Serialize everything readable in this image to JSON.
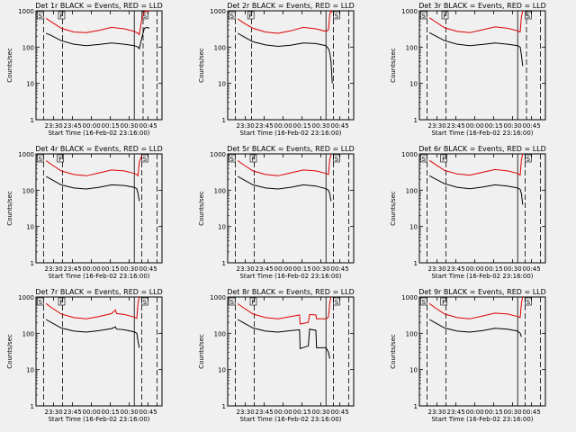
{
  "colors": {
    "background": "#f0f0f0",
    "events": "#000000",
    "lld": "#dd0000",
    "axis": "#000000"
  },
  "chart_data": {
    "type": "line",
    "ylabel": "Counts/sec",
    "xlabel": "Start Time (16-Feb-02 23:16:00)",
    "y_scale": "log",
    "ylim": [
      1,
      1000
    ],
    "y_ticks": [
      {
        "value": 1,
        "label": "1"
      },
      {
        "value": 10,
        "label": "10"
      },
      {
        "value": 100,
        "label": "100"
      },
      {
        "value": 1000,
        "label": "1000"
      }
    ],
    "x_range_minutes": [
      -7.5,
      35
    ],
    "x_ticks": [
      {
        "value": 14,
        "label": "23:30"
      },
      {
        "value": 29,
        "label": "23:45"
      },
      {
        "value": 44,
        "label": "00:00"
      },
      {
        "value": 59,
        "label": "00:15"
      },
      {
        "value": 74,
        "label": "00:30"
      },
      {
        "value": 89,
        "label": "00:45"
      }
    ],
    "x_minute_offset": 0,
    "markers": {
      "S": "S",
      "F": "F"
    },
    "panels": [
      {
        "title": "Det 1r BLACK = Events, RED = LLD",
        "xlim": [
          0,
          100
        ],
        "dashed_lines_x": [
          6,
          21,
          85,
          96
        ],
        "solid_lines_x": [
          78
        ],
        "marker_labels": [
          {
            "text": "S",
            "x": 3
          },
          {
            "text": "F",
            "x": 20
          },
          {
            "text": "S",
            "x": 86
          }
        ],
        "series": [
          {
            "name": "Events",
            "x": [
              8,
              12,
              20,
              30,
              40,
              50,
              60,
              70,
              78,
              81,
              82,
              84,
              86,
              88,
              90
            ],
            "y": [
              240,
              210,
              150,
              120,
              110,
              118,
              130,
              120,
              110,
              100,
              90,
              180,
              330,
              350,
              330
            ]
          },
          {
            "name": "LLD",
            "x": [
              8,
              12,
              20,
              30,
              40,
              50,
              60,
              70,
              78,
              81,
              82,
              84,
              86,
              88,
              90
            ],
            "y": [
              620,
              500,
              330,
              260,
              250,
              290,
              350,
              320,
              270,
              240,
              220,
              600,
              950,
              1000,
              980
            ]
          }
        ]
      },
      {
        "title": "Det 2r BLACK = Events, RED = LLD",
        "xlim": [
          0,
          100
        ],
        "dashed_lines_x": [
          6,
          19,
          84,
          96
        ],
        "solid_lines_x": [
          78
        ],
        "marker_labels": [
          {
            "text": "S",
            "x": 3
          },
          {
            "text": "F",
            "x": 18
          },
          {
            "text": "S",
            "x": 86
          }
        ],
        "series": [
          {
            "name": "Events",
            "x": [
              8,
              12,
              20,
              30,
              40,
              50,
              60,
              70,
              78,
              80,
              81,
              82,
              83
            ],
            "y": [
              240,
              200,
              140,
              115,
              105,
              112,
              130,
              125,
              110,
              90,
              70,
              40,
              10
            ]
          },
          {
            "name": "LLD",
            "x": [
              8,
              12,
              20,
              30,
              40,
              50,
              60,
              70,
              78,
              80,
              81,
              82,
              83
            ],
            "y": [
              600,
              480,
              330,
              260,
              240,
              280,
              350,
              320,
              270,
              300,
              800,
              1000,
              900
            ]
          }
        ]
      },
      {
        "title": "Det 3r BLACK = Events, RED = LLD",
        "xlim": [
          0,
          100
        ],
        "dashed_lines_x": [
          6,
          21,
          85,
          96
        ],
        "solid_lines_x": [
          78
        ],
        "marker_labels": [
          {
            "text": "S",
            "x": 3
          },
          {
            "text": "F",
            "x": 20
          },
          {
            "text": "S",
            "x": 86
          }
        ],
        "series": [
          {
            "name": "Events",
            "x": [
              8,
              12,
              20,
              30,
              40,
              50,
              60,
              70,
              78,
              80,
              81,
              82
            ],
            "y": [
              250,
              210,
              150,
              120,
              110,
              118,
              130,
              120,
              110,
              100,
              60,
              30
            ]
          },
          {
            "name": "LLD",
            "x": [
              8,
              12,
              20,
              30,
              40,
              50,
              60,
              70,
              78,
              80,
              81,
              82
            ],
            "y": [
              640,
              520,
              340,
              270,
              250,
              300,
              360,
              330,
              280,
              260,
              700,
              1000
            ]
          }
        ]
      },
      {
        "title": "Det 4r BLACK = Events, RED = LLD",
        "xlim": [
          0,
          100
        ],
        "dashed_lines_x": [
          6,
          21,
          84,
          96
        ],
        "solid_lines_x": [
          78
        ],
        "marker_labels": [
          {
            "text": "S",
            "x": 3
          },
          {
            "text": "F",
            "x": 19
          },
          {
            "text": "S",
            "x": 86
          }
        ],
        "series": [
          {
            "name": "Events",
            "x": [
              8,
              12,
              20,
              30,
              40,
              50,
              60,
              70,
              78,
              80,
              81,
              82
            ],
            "y": [
              240,
              200,
              140,
              115,
              108,
              120,
              140,
              135,
              120,
              110,
              80,
              50
            ]
          },
          {
            "name": "LLD",
            "x": [
              8,
              12,
              20,
              30,
              40,
              50,
              60,
              70,
              78,
              80,
              81,
              82,
              84
            ],
            "y": [
              650,
              520,
              340,
              270,
              250,
              300,
              360,
              340,
              290,
              270,
              250,
              600,
              900
            ]
          }
        ]
      },
      {
        "title": "Det 5r BLACK = Events, RED = LLD",
        "xlim": [
          0,
          100
        ],
        "dashed_lines_x": [
          6,
          21,
          84,
          96
        ],
        "solid_lines_x": [
          78
        ],
        "marker_labels": [
          {
            "text": "S",
            "x": 3
          },
          {
            "text": "F",
            "x": 20
          },
          {
            "text": "S",
            "x": 86
          }
        ],
        "series": [
          {
            "name": "Events",
            "x": [
              8,
              12,
              20,
              30,
              40,
              50,
              60,
              70,
              78,
              80,
              81,
              82
            ],
            "y": [
              240,
              200,
              140,
              115,
              108,
              120,
              140,
              130,
              110,
              100,
              80,
              50
            ]
          },
          {
            "name": "LLD",
            "x": [
              8,
              12,
              20,
              30,
              40,
              50,
              60,
              70,
              78,
              80,
              81,
              82
            ],
            "y": [
              650,
              520,
              340,
              270,
              250,
              300,
              360,
              340,
              290,
              270,
              700,
              950
            ]
          }
        ]
      },
      {
        "title": "Det 6r BLACK = Events, RED = LLD",
        "xlim": [
          0,
          100
        ],
        "dashed_lines_x": [
          6,
          21,
          84,
          96
        ],
        "solid_lines_x": [
          78
        ],
        "marker_labels": [
          {
            "text": "S",
            "x": 3
          },
          {
            "text": "F",
            "x": 19
          },
          {
            "text": "S",
            "x": 86
          }
        ],
        "series": [
          {
            "name": "Events",
            "x": [
              8,
              12,
              20,
              30,
              40,
              50,
              60,
              70,
              78,
              80,
              81,
              82
            ],
            "y": [
              250,
              210,
              150,
              120,
              110,
              122,
              140,
              130,
              115,
              105,
              80,
              40
            ]
          },
          {
            "name": "LLD",
            "x": [
              8,
              12,
              20,
              30,
              40,
              50,
              60,
              70,
              78,
              80,
              81,
              82
            ],
            "y": [
              660,
              530,
              350,
              280,
              260,
              310,
              370,
              340,
              290,
              260,
              700,
              1000
            ]
          }
        ]
      },
      {
        "title": "Det 7r BLACK = Events, RED = LLD",
        "xlim": [
          0,
          100
        ],
        "dashed_lines_x": [
          6,
          21,
          84,
          96
        ],
        "solid_lines_x": [
          78
        ],
        "marker_labels": [
          {
            "text": "S",
            "x": 3
          },
          {
            "text": "F",
            "x": 20
          },
          {
            "text": "S",
            "x": 86
          }
        ],
        "series": [
          {
            "name": "Events",
            "x": [
              8,
              12,
              20,
              30,
              40,
              50,
              60,
              63,
              64,
              70,
              78,
              80,
              81,
              82
            ],
            "y": [
              240,
              200,
              140,
              115,
              108,
              118,
              135,
              150,
              130,
              125,
              110,
              100,
              60,
              40
            ]
          },
          {
            "name": "LLD",
            "x": [
              8,
              12,
              20,
              30,
              40,
              50,
              60,
              63,
              64,
              70,
              78,
              80,
              81,
              82
            ],
            "y": [
              660,
              520,
              340,
              270,
              250,
              290,
              350,
              440,
              350,
              330,
              280,
              260,
              700,
              1000
            ]
          }
        ]
      },
      {
        "title": "Det 8r BLACK = Events, RED = LLD",
        "xlim": [
          0,
          100
        ],
        "dashed_lines_x": [
          6,
          21,
          84,
          96
        ],
        "solid_lines_x": [
          78
        ],
        "marker_labels": [
          {
            "text": "S",
            "x": 3
          },
          {
            "text": "F",
            "x": 20
          },
          {
            "text": "S",
            "x": 86
          }
        ],
        "series": [
          {
            "name": "Events",
            "x": [
              8,
              12,
              20,
              30,
              40,
              50,
              57,
              57.5,
              64,
              65,
              70,
              70.5,
              78,
              80,
              81
            ],
            "y": [
              240,
              200,
              140,
              115,
              108,
              118,
              125,
              38,
              45,
              130,
              120,
              40,
              40,
              30,
              20
            ]
          },
          {
            "name": "LLD",
            "x": [
              8,
              12,
              20,
              30,
              40,
              50,
              57,
              57.5,
              64,
              65,
              70,
              70.5,
              78,
              80,
              81,
              82
            ],
            "y": [
              650,
              520,
              340,
              270,
              250,
              290,
              320,
              180,
              200,
              330,
              320,
              250,
              250,
              280,
              700,
              1000
            ]
          }
        ]
      },
      {
        "title": "Det 9r BLACK = Events, RED = LLD",
        "xlim": [
          0,
          100
        ],
        "dashed_lines_x": [
          6,
          21,
          84,
          96
        ],
        "solid_lines_x": [
          78
        ],
        "marker_labels": [
          {
            "text": "S",
            "x": 3
          },
          {
            "text": "F",
            "x": 19
          },
          {
            "text": "S",
            "x": 86
          }
        ],
        "series": [
          {
            "name": "Events",
            "x": [
              8,
              12,
              20,
              30,
              40,
              50,
              60,
              70,
              78,
              80,
              81
            ],
            "y": [
              240,
              200,
              140,
              115,
              108,
              118,
              138,
              130,
              115,
              100,
              80
            ]
          },
          {
            "name": "LLD",
            "x": [
              8,
              12,
              20,
              30,
              40,
              50,
              60,
              70,
              78,
              80,
              81,
              82
            ],
            "y": [
              660,
              520,
              340,
              270,
              250,
              300,
              360,
              340,
              290,
              270,
              700,
              1000
            ]
          }
        ]
      }
    ]
  }
}
